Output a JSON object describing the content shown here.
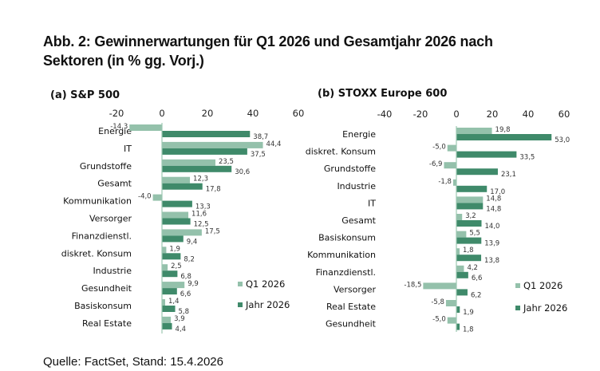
{
  "title": "Abb. 2: Gewinnerwartungen für Q1 2026 und Gesamtjahr 2026 nach Sektoren (in % gg. Vorj.)",
  "title_line1": "Abb. 2: Gewinnerwartungen für Q1 2026 und Gesamtjahr 2026 nach",
  "title_line2": "Sektoren (in % gg. Vorj.)",
  "source": "Quelle: FactSet, Stand: 15.4.2026",
  "colors": {
    "q1": "#94c1ab",
    "year": "#3f8a6a",
    "axis": "#9cc7b2"
  },
  "chart_data": [
    {
      "type": "bar",
      "orientation": "horizontal",
      "title": "(a) S&P 500",
      "xlim": [
        -20,
        60
      ],
      "xticks": [
        -20,
        0,
        20,
        40,
        60
      ],
      "xtick_labels": [
        "-20",
        "0",
        "20",
        "40",
        "60"
      ],
      "legend": [
        "Q1 2026",
        "Jahr 2026"
      ],
      "legend_position": "right",
      "categories": [
        "Energie",
        "IT",
        "Grundstoffe",
        "Gesamt",
        "Kommunikation",
        "Versorger",
        "Finanzdienstl.",
        "diskret. Konsum",
        "Industrie",
        "Gesundheit",
        "Basiskonsum",
        "Real Estate"
      ],
      "series": [
        {
          "name": "Q1 2026",
          "values": [
            -14.3,
            44.4,
            23.5,
            12.3,
            -4.0,
            11.6,
            17.5,
            1.9,
            2.5,
            9.9,
            1.4,
            3.9
          ],
          "labels": [
            "-14,3",
            "44,4",
            "23,5",
            "12,3",
            "-4,0",
            "11,6",
            "17,5",
            "1,9",
            "2,5",
            "9,9",
            "1,4",
            "3,9"
          ]
        },
        {
          "name": "Jahr 2026",
          "values": [
            38.7,
            37.5,
            30.6,
            17.8,
            13.3,
            12.5,
            9.4,
            8.2,
            6.8,
            6.6,
            5.8,
            4.4
          ],
          "labels": [
            "38,7",
            "37,5",
            "30,6",
            "17,8",
            "13,3",
            "12,5",
            "9,4",
            "8,2",
            "6,8",
            "6,6",
            "5,8",
            "4,4"
          ]
        }
      ]
    },
    {
      "type": "bar",
      "orientation": "horizontal",
      "title": "(b) STOXX Europe 600",
      "xlim": [
        -40,
        60
      ],
      "xticks": [
        -40,
        -20,
        0,
        20,
        40,
        60
      ],
      "xtick_labels": [
        "-40",
        "-20",
        "0",
        "20",
        "40",
        "60"
      ],
      "legend": [
        "Q1 2026",
        "Jahr 2026"
      ],
      "legend_position": "right",
      "categories": [
        "Energie",
        "diskret. Konsum",
        "Grundstoffe",
        "Industrie",
        "IT",
        "Gesamt",
        "Basiskonsum",
        "Kommunikation",
        "Finanzdienstl.",
        "Versorger",
        "Real Estate",
        "Gesundheit"
      ],
      "series": [
        {
          "name": "Q1 2026",
          "values": [
            19.8,
            -5.0,
            -6.9,
            -1.8,
            14.8,
            3.2,
            5.5,
            1.8,
            4.2,
            -18.5,
            -5.8,
            -5.0
          ],
          "labels": [
            "19,8",
            "-5,0",
            "-6,9",
            "-1,8",
            "14,8",
            "3,2",
            "5,5",
            "1,8",
            "4,2",
            "-18,5",
            "-5,8",
            "-5,0"
          ]
        },
        {
          "name": "Jahr 2026",
          "values": [
            53.0,
            33.5,
            23.1,
            17.0,
            14.8,
            14.0,
            13.9,
            13.8,
            6.6,
            6.2,
            1.9,
            1.8
          ],
          "labels": [
            "53,0",
            "33,5",
            "23,1",
            "17,0",
            "14,8",
            "14,0",
            "13,9",
            "13,8",
            "6,6",
            "6,2",
            "1,9",
            "1,8"
          ]
        }
      ]
    }
  ]
}
